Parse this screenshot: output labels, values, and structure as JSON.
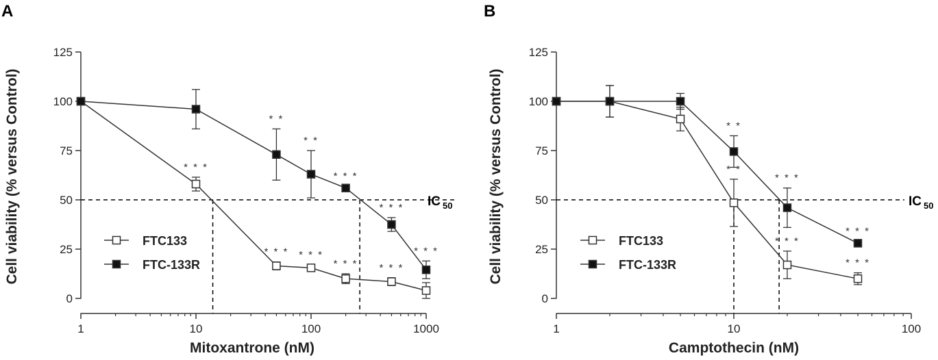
{
  "chart_data": [
    {
      "type": "line",
      "panel": "A",
      "xscale": "log",
      "xlim": [
        1,
        1000
      ],
      "ylim": [
        0,
        125
      ],
      "xticks": [
        1,
        10,
        100,
        1000
      ],
      "xtick_labels": [
        "1",
        "10",
        "100",
        "1000"
      ],
      "yticks": [
        0,
        25,
        50,
        75,
        100,
        125
      ],
      "ytick_labels": [
        "0",
        "25",
        "50",
        "75",
        "100",
        "125"
      ],
      "xlabel": "Mitoxantrone (nM)",
      "ylabel": "Cell viability (% versus Control)",
      "ic50_label": "IC",
      "ic50_sub": "50",
      "ic50_value": 50,
      "ic50_drops": [
        14,
        265
      ],
      "legend_position": "bottom-left",
      "series": [
        {
          "name": "FTC133",
          "marker": "open-square",
          "x": [
            1,
            10,
            50,
            100,
            200,
            500,
            1000
          ],
          "y": [
            100,
            58,
            16.5,
            15.5,
            10,
            8.5,
            4
          ],
          "err": [
            0,
            3.5,
            2,
            1.5,
            2.5,
            2,
            4
          ],
          "sig": [
            "",
            "***",
            "***",
            "***",
            "***",
            "***",
            ""
          ]
        },
        {
          "name": "FTC-133R",
          "marker": "filled-square",
          "x": [
            1,
            10,
            50,
            100,
            200,
            500,
            1000
          ],
          "y": [
            100,
            96,
            73,
            63,
            56,
            37.5,
            14.5
          ],
          "err": [
            0,
            10,
            13,
            12,
            1,
            3.5,
            4.5
          ],
          "sig": [
            "",
            "",
            "**",
            "**",
            "***",
            "***",
            "***"
          ]
        }
      ]
    },
    {
      "type": "line",
      "panel": "B",
      "xscale": "log",
      "xlim": [
        1,
        100
      ],
      "ylim": [
        0,
        125
      ],
      "xticks": [
        1,
        10,
        100
      ],
      "xtick_labels": [
        "1",
        "10",
        "100"
      ],
      "yticks": [
        0,
        25,
        50,
        75,
        100,
        125
      ],
      "ytick_labels": [
        "0",
        "25",
        "50",
        "75",
        "100",
        "125"
      ],
      "xlabel": "Camptothecin (nM)",
      "ylabel": "Cell viability (% versus Control)",
      "ic50_label": "IC",
      "ic50_sub": "50",
      "ic50_value": 50,
      "ic50_drops": [
        10,
        18
      ],
      "legend_position": "bottom-left",
      "series": [
        {
          "name": "FTC133",
          "marker": "open-square",
          "x": [
            1,
            2,
            5,
            10,
            20,
            50
          ],
          "y": [
            100,
            100,
            91,
            48.5,
            17,
            10
          ],
          "err": [
            0,
            8,
            6,
            12,
            7,
            3
          ],
          "sig": [
            "",
            "",
            "",
            "**",
            "***",
            "***"
          ]
        },
        {
          "name": "FTC-133R",
          "marker": "filled-square",
          "x": [
            1,
            2,
            5,
            10,
            20,
            50
          ],
          "y": [
            100,
            100,
            100,
            74.5,
            46,
            28
          ],
          "err": [
            0,
            8,
            4,
            8,
            10,
            1
          ],
          "sig": [
            "",
            "",
            "",
            "**",
            "***",
            "***"
          ]
        }
      ]
    }
  ]
}
